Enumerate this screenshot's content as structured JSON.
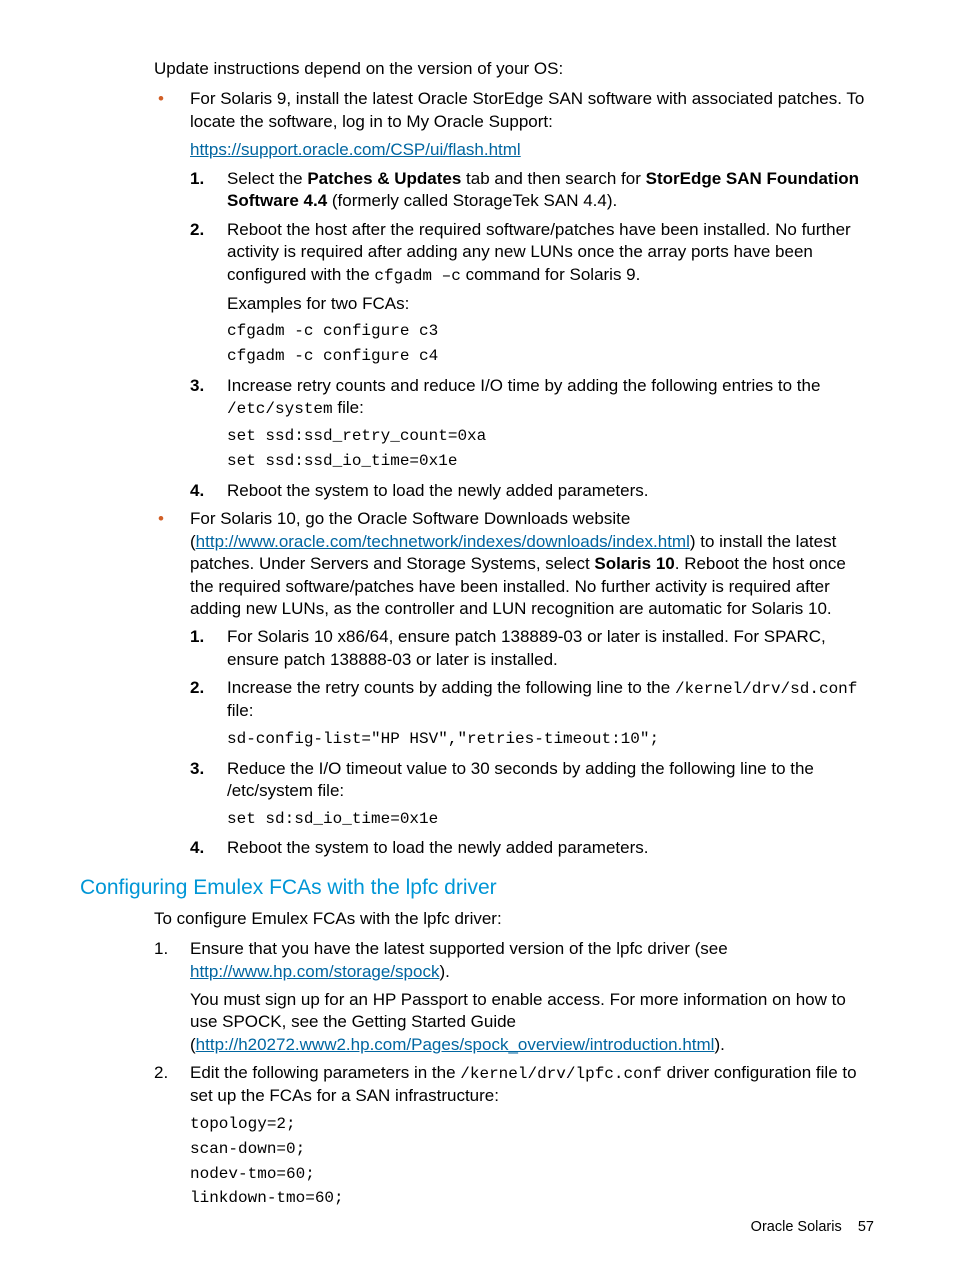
{
  "intro": "Update instructions depend on the version of your OS:",
  "bullet1": {
    "lead": "For Solaris 9, install the latest Oracle StorEdge SAN software with associated patches. To locate the software, log in to My Oracle Support:",
    "link": "https://support.oracle.com/CSP/ui/flash.html",
    "steps": {
      "s1_a": "Select the ",
      "s1_b": "Patches & Updates",
      "s1_c": " tab and then search for ",
      "s1_d": "StorEdge SAN Foundation Software 4.4",
      "s1_e": " (formerly called StorageTek SAN 4.4).",
      "s2_a": "Reboot the host after the required software/patches have been installed. No further activity is required after adding any new LUNs once the array ports have been configured with the ",
      "s2_cmd": "cfgadm –c",
      "s2_b": " command for Solaris 9.",
      "s2_ex": "Examples for two FCAs:",
      "s2_code": "cfgadm -c configure c3\ncfgadm -c configure c4",
      "s3_a": "Increase retry counts and reduce I/O time by adding the following entries to the ",
      "s3_file": "/etc/system",
      "s3_b": " file:",
      "s3_code": "set ssd:ssd_retry_count=0xa\nset ssd:ssd_io_time=0x1e",
      "s4": "Reboot the system to load the newly added parameters."
    }
  },
  "bullet2": {
    "lead_a": "For Solaris 10, go the Oracle Software Downloads website (",
    "lead_link": "http://www.oracle.com/technetwork/indexes/downloads/index.html",
    "lead_b": ") to install the latest patches. Under Servers and Storage Systems, select ",
    "lead_bold": "Solaris 10",
    "lead_c": ". Reboot the host once the required software/patches have been installed. No further activity is required after adding new LUNs, as the controller and LUN recognition are automatic for Solaris 10.",
    "steps": {
      "s1": "For Solaris 10 x86/64, ensure patch 138889-03 or later is installed. For SPARC, ensure patch 138888-03 or later is installed.",
      "s2_a": "Increase the retry counts by adding the following line to the ",
      "s2_file": "/kernel/drv/sd.conf",
      "s2_b": " file:",
      "s2_code": "sd-config-list=\"HP HSV\",\"retries-timeout:10\";",
      "s3_a": "Reduce the I/O timeout value to 30 seconds by adding the following line to the /etc/system file:",
      "s3_code": "set sd:sd_io_time=0x1e",
      "s4": "Reboot the system to load the newly added parameters."
    }
  },
  "section_heading": "Configuring Emulex FCAs with the lpfc driver",
  "sec": {
    "intro": "To configure Emulex FCAs with the lpfc driver:",
    "o1_a": "Ensure that you have the latest supported version of the lpfc driver (see ",
    "o1_link": "http://www.hp.com/storage/spock",
    "o1_b": ").",
    "o1_p2_a": "You must sign up for an HP Passport to enable access. For more information on how to use SPOCK, see the Getting Started Guide (",
    "o1_p2_link": "http://h20272.www2.hp.com/Pages/spock_overview/introduction.html",
    "o1_p2_b": ").",
    "o2_a": "Edit the following parameters in the ",
    "o2_file": "/kernel/drv/lpfc.conf",
    "o2_b": " driver configuration file to set up the FCAs for a SAN infrastructure:",
    "o2_code": "topology=2;\nscan-down=0;\nnodev-tmo=60;\nlinkdown-tmo=60;"
  },
  "footer_text": "Oracle Solaris",
  "footer_page": "57"
}
